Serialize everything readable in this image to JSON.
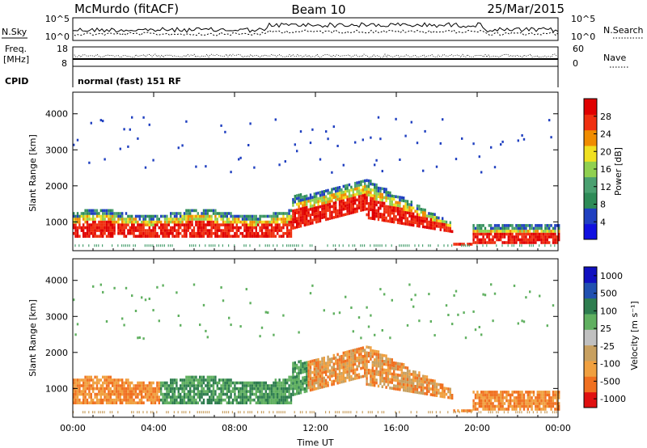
{
  "header": {
    "station": "McMurdo (fitACF)",
    "beam": "Beam 10",
    "date": "25/Mar/2015"
  },
  "aux": {
    "nsky_label": "N.Sky",
    "nsearch_label": "N.Search",
    "freq_label_1": "Freq.",
    "freq_label_2": "[MHz]",
    "nave_label": "Nave",
    "cpid_label": "CPID",
    "cpid_value": "normal (fast) 151 RF",
    "noise_ticks_left": [
      "10^5",
      "10^0"
    ],
    "noise_ticks_right": [
      "10^5",
      "10^0"
    ],
    "freq_ticks": [
      "18",
      "8"
    ],
    "nave_ticks": [
      "60",
      "0"
    ]
  },
  "colors": {
    "power_scale": [
      "#1010e0",
      "#2040c0",
      "#2e8b57",
      "#4aa070",
      "#90d050",
      "#f0e020",
      "#f08c00",
      "#f03010",
      "#e00000"
    ],
    "velocity_scale": [
      "#1010c0",
      "#2050b0",
      "#2e7d4f",
      "#60b060",
      "#c0c0c0",
      "#c8a060",
      "#f0a040",
      "#f07020",
      "#e01010"
    ]
  },
  "chart_data": [
    {
      "type": "heatmap",
      "name": "Power",
      "xlabel": "",
      "ylabel": "Slant Range [km]",
      "x_ticks": [
        "00:00",
        "04:00",
        "08:00",
        "12:00",
        "16:00",
        "20:00",
        "00:00"
      ],
      "y_ticks": [
        1000,
        2000,
        3000,
        4000
      ],
      "ylim": [
        200,
        4600
      ],
      "colorbar": {
        "label": "Power [dB]",
        "ticks": [
          4,
          8,
          12,
          16,
          20,
          24,
          28
        ]
      }
    },
    {
      "type": "heatmap",
      "name": "Velocity",
      "xlabel": "Time UT",
      "ylabel": "Slant Range [km]",
      "x_ticks": [
        "00:00",
        "04:00",
        "08:00",
        "12:00",
        "16:00",
        "20:00",
        "00:00"
      ],
      "y_ticks": [
        1000,
        2000,
        3000,
        4000
      ],
      "ylim": [
        200,
        4600
      ],
      "colorbar": {
        "label": "Velocity [m s⁻¹]",
        "ticks": [
          1000,
          500,
          100,
          25,
          -25,
          -100,
          -500,
          -1000
        ]
      }
    }
  ]
}
